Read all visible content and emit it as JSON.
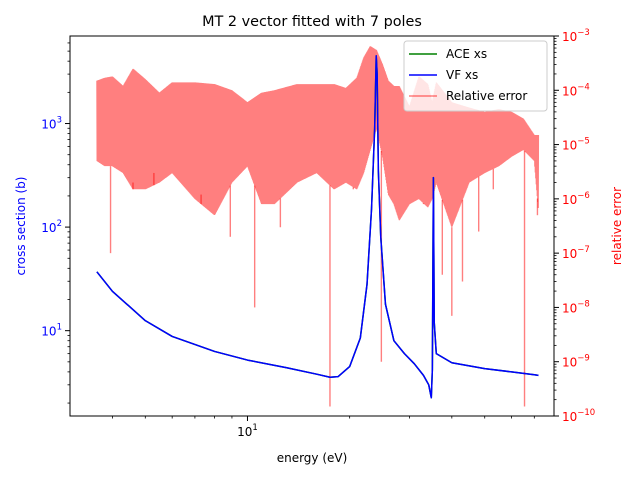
{
  "chart_data": {
    "type": "line",
    "title": "MT 2 vector fitted with 7 poles",
    "xlabel": "energy (eV)",
    "ylabel": "cross section (b)",
    "ylabel_right": "relative error",
    "xscale": "log",
    "yscale": "log",
    "yscale_right": "log",
    "xlim": [
      3.0,
      80.0
    ],
    "ylim": [
      1.5,
      7000
    ],
    "ylim_right": [
      1e-10,
      0.001
    ],
    "x_ticks": [
      {
        "value": 10,
        "base": "10",
        "exp": "1"
      }
    ],
    "y_ticks": [
      {
        "value": 10,
        "base": "10",
        "exp": "1"
      },
      {
        "value": 100,
        "base": "10",
        "exp": "2"
      },
      {
        "value": 1000,
        "base": "10",
        "exp": "3"
      }
    ],
    "y_ticks_right": [
      {
        "value": 1e-10,
        "base": "10",
        "exp": "−10"
      },
      {
        "value": 1e-09,
        "base": "10",
        "exp": "−9"
      },
      {
        "value": 1e-08,
        "base": "10",
        "exp": "−8"
      },
      {
        "value": 1e-07,
        "base": "10",
        "exp": "−7"
      },
      {
        "value": 1e-06,
        "base": "10",
        "exp": "−6"
      },
      {
        "value": 1e-05,
        "base": "10",
        "exp": "−5"
      },
      {
        "value": 0.0001,
        "base": "10",
        "exp": "−4"
      },
      {
        "value": 0.001,
        "base": "10",
        "exp": "−3"
      }
    ],
    "legend_position": "top-right",
    "colors": {
      "ace": "#008000",
      "vf": "#0000ff",
      "error": "#ff0000",
      "right_axis": "#ff0000",
      "left_axis": "#0000ff"
    },
    "series": [
      {
        "name": "ACE xs",
        "axis": "left",
        "x": [
          3.6,
          4.0,
          5.0,
          6.0,
          8.0,
          10.0,
          13.0,
          16.0,
          17.5,
          18.5,
          20.0,
          21.5,
          22.5,
          23.2,
          23.7,
          23.95,
          24.1,
          24.3,
          24.7,
          25.5,
          27.0,
          29.0,
          31.0,
          33.0,
          34.2,
          34.8,
          35.05,
          35.3,
          35.5,
          36.0,
          40.0,
          50.0,
          60.0,
          70.0,
          72.0
        ],
        "y": [
          37,
          24,
          12.5,
          8.8,
          6.3,
          5.2,
          4.4,
          3.8,
          3.55,
          3.6,
          4.5,
          8.5,
          28,
          150,
          900,
          4500,
          3000,
          350,
          80,
          18,
          8.0,
          6.0,
          4.8,
          3.7,
          3.0,
          2.25,
          4.2,
          300,
          12,
          6.0,
          4.9,
          4.3,
          4.0,
          3.75,
          3.7
        ]
      },
      {
        "name": "VF xs",
        "axis": "left",
        "x": [
          3.6,
          4.0,
          5.0,
          6.0,
          8.0,
          10.0,
          13.0,
          16.0,
          17.5,
          18.5,
          20.0,
          21.5,
          22.5,
          23.2,
          23.7,
          23.95,
          24.1,
          24.3,
          24.7,
          25.5,
          27.0,
          29.0,
          31.0,
          33.0,
          34.2,
          34.8,
          35.05,
          35.3,
          35.5,
          36.0,
          40.0,
          50.0,
          60.0,
          70.0,
          72.0
        ],
        "y": [
          37,
          24,
          12.5,
          8.8,
          6.3,
          5.2,
          4.4,
          3.8,
          3.55,
          3.6,
          4.5,
          8.5,
          28,
          150,
          900,
          4500,
          3000,
          350,
          80,
          18,
          8.0,
          6.0,
          4.8,
          3.7,
          3.0,
          2.25,
          4.2,
          300,
          12,
          6.0,
          4.9,
          4.3,
          4.0,
          3.75,
          3.7
        ]
      },
      {
        "name": "Relative error",
        "axis": "right",
        "envelope_x": [
          3.6,
          3.8,
          4.0,
          4.3,
          4.6,
          5.0,
          5.5,
          6.0,
          7.0,
          8.0,
          9.0,
          10.0,
          11.0,
          12.0,
          14.0,
          16.0,
          18.0,
          19.5,
          21.0,
          22.0,
          23.0,
          24.0,
          25.0,
          26.0,
          27.0,
          28.0,
          30.0,
          32.0,
          34.0,
          35.0,
          36.0,
          40.0,
          45.0,
          50.0,
          55.0,
          60.0,
          65.0,
          70.0,
          72.0
        ],
        "envelope_hi": [
          0.00015,
          0.00017,
          0.00018,
          0.00012,
          0.00025,
          0.00016,
          9e-05,
          0.00014,
          0.00014,
          0.00013,
          0.0001,
          6e-05,
          9e-05,
          0.0001,
          0.00013,
          0.00013,
          0.00013,
          0.00011,
          0.00017,
          0.0004,
          0.00065,
          0.00055,
          0.0003,
          0.00015,
          0.00012,
          0.00012,
          5e-05,
          0.00018,
          0.00013,
          6e-05,
          0.00014,
          6e-05,
          4.8e-05,
          4e-05,
          4.5e-05,
          4e-05,
          3e-05,
          1.5e-05,
          1.5e-05
        ],
        "envelope_lo": [
          5e-06,
          4e-06,
          4e-06,
          3e-06,
          1.5e-06,
          1.5e-06,
          2e-06,
          3e-06,
          1e-06,
          5e-07,
          2e-06,
          4e-06,
          8e-07,
          8e-07,
          2e-06,
          3e-06,
          1.5e-06,
          2e-06,
          1.5e-06,
          3e-06,
          8e-06,
          2e-05,
          6e-06,
          1.2e-06,
          8e-07,
          4e-07,
          8e-07,
          1e-06,
          7e-07,
          1e-06,
          2e-06,
          3e-07,
          2e-06,
          3e-06,
          4e-06,
          6e-06,
          8e-06,
          5e-06,
          6e-07
        ],
        "dips": [
          {
            "x": 3.95,
            "y": 1e-07
          },
          {
            "x": 4.6,
            "y": 2e-06
          },
          {
            "x": 5.3,
            "y": 3e-06
          },
          {
            "x": 7.3,
            "y": 1.2e-06
          },
          {
            "x": 8.9,
            "y": 2e-07
          },
          {
            "x": 10.5,
            "y": 1e-08
          },
          {
            "x": 12.5,
            "y": 3e-07
          },
          {
            "x": 17.5,
            "y": 1.5e-10
          },
          {
            "x": 20.5,
            "y": 1.5e-06
          },
          {
            "x": 24.8,
            "y": 1e-09
          },
          {
            "x": 33.0,
            "y": 8e-07
          },
          {
            "x": 37.5,
            "y": 4e-08
          },
          {
            "x": 40.0,
            "y": 7e-09
          },
          {
            "x": 43.0,
            "y": 3e-08
          },
          {
            "x": 48.0,
            "y": 2.5e-07
          },
          {
            "x": 53.0,
            "y": 1.5e-06
          },
          {
            "x": 65.5,
            "y": 1.5e-10
          },
          {
            "x": 71.5,
            "y": 5e-07
          }
        ]
      }
    ]
  }
}
